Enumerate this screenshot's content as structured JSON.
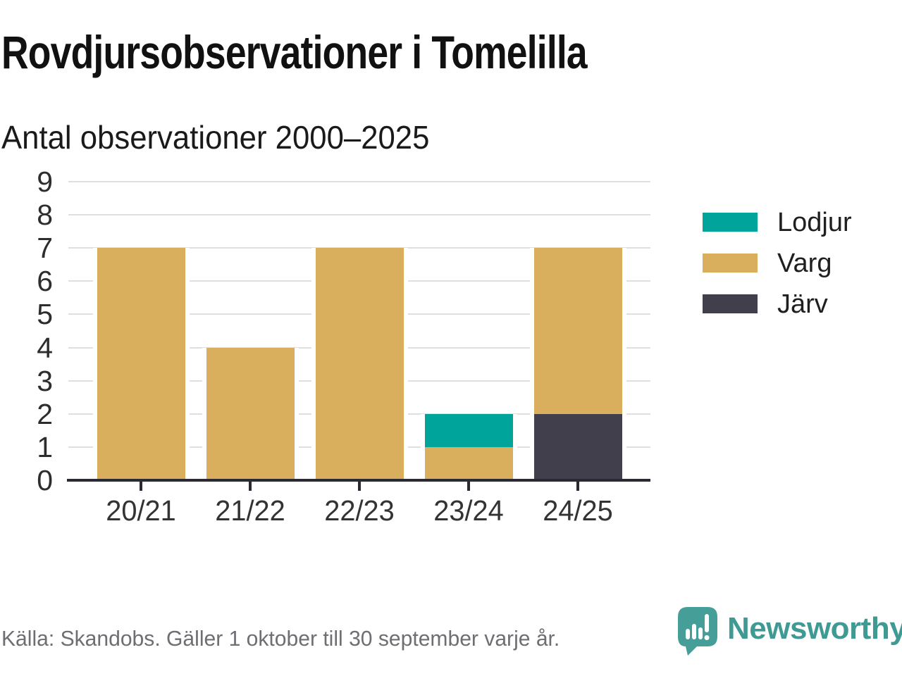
{
  "title": "Rovdjursobservationer i Tomelilla",
  "subtitle": "Antal observationer 2000–2025",
  "footer": {
    "source": "Källa: Skandobs. Gäller 1 oktober till 30 september varje år."
  },
  "branding": {
    "name": "Newsworthy",
    "color": "#3f9a94",
    "logo_icon": "speech-bubble-bar-chart-icon"
  },
  "chart_data": {
    "type": "bar",
    "stacked": true,
    "title": "Rovdjursobservationer i Tomelilla",
    "subtitle": "Antal observationer 2000–2025",
    "xlabel": "",
    "ylabel": "",
    "categories": [
      "20/21",
      "21/22",
      "22/23",
      "23/24",
      "24/25"
    ],
    "series": [
      {
        "name": "Lodjur",
        "color": "#00a49a",
        "values": [
          0,
          0,
          0,
          1,
          0
        ]
      },
      {
        "name": "Varg",
        "color": "#d9ae5c",
        "values": [
          7,
          4,
          7,
          1,
          5
        ]
      },
      {
        "name": "Järv",
        "color": "#413f4c",
        "values": [
          0,
          0,
          0,
          0,
          2
        ]
      }
    ],
    "stack_order_bottom_to_top": [
      "Järv",
      "Varg",
      "Lodjur"
    ],
    "ylim": [
      0,
      9
    ],
    "yticks": [
      0,
      1,
      2,
      3,
      4,
      5,
      6,
      7,
      8,
      9
    ],
    "grid": true,
    "gridline_color": "#dfdfdf",
    "axis_color": "#2b2a33",
    "legend_position": "right"
  }
}
